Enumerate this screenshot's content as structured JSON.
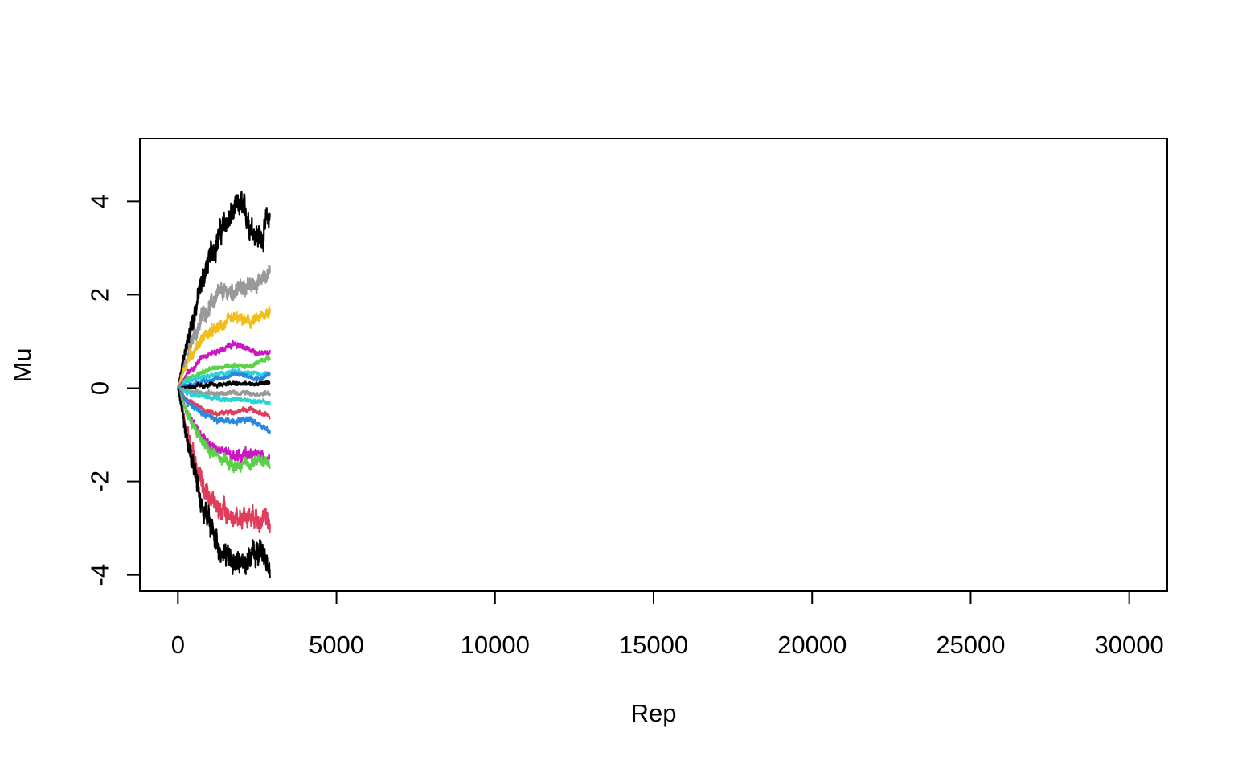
{
  "chart_data": {
    "type": "line",
    "title": "",
    "xlabel": "Rep",
    "ylabel": "Mu",
    "xlim": [
      -1200,
      31200
    ],
    "ylim": [
      -4.35,
      5.35
    ],
    "xticks": [
      0,
      5000,
      10000,
      15000,
      20000,
      25000,
      30000
    ],
    "xtick_labels": [
      "0",
      "5000",
      "10000",
      "15000",
      "20000",
      "25000",
      "30000"
    ],
    "yticks": [
      -4,
      -2,
      0,
      2,
      4
    ],
    "ytick_labels": [
      "-4",
      "-2",
      "0",
      "2",
      "4"
    ],
    "grid": false,
    "legend": "none",
    "x_range_of_series": [
      0,
      2900
    ],
    "series": [
      {
        "color": "#000000",
        "envelope": [
          [
            0,
            0
          ],
          [
            300,
            1.0
          ],
          [
            800,
            2.4
          ],
          [
            1300,
            3.3
          ],
          [
            1800,
            3.8
          ],
          [
            2000,
            3.9
          ],
          [
            2300,
            3.5
          ],
          [
            2600,
            3.2
          ],
          [
            2900,
            3.7
          ]
        ]
      },
      {
        "color": "#999999",
        "envelope": [
          [
            0,
            0
          ],
          [
            300,
            0.7
          ],
          [
            800,
            1.6
          ],
          [
            1300,
            2.0
          ],
          [
            1800,
            2.1
          ],
          [
            2300,
            2.2
          ],
          [
            2600,
            2.3
          ],
          [
            2900,
            2.5
          ]
        ]
      },
      {
        "color": "#F2BE1B",
        "envelope": [
          [
            0,
            0
          ],
          [
            300,
            0.6
          ],
          [
            800,
            1.1
          ],
          [
            1300,
            1.3
          ],
          [
            1800,
            1.5
          ],
          [
            2300,
            1.4
          ],
          [
            2600,
            1.5
          ],
          [
            2900,
            1.7
          ]
        ]
      },
      {
        "color": "#CC16C3",
        "envelope": [
          [
            0,
            0
          ],
          [
            300,
            0.3
          ],
          [
            800,
            0.7
          ],
          [
            1300,
            0.8
          ],
          [
            1800,
            0.95
          ],
          [
            2300,
            0.8
          ],
          [
            2600,
            0.75
          ],
          [
            2900,
            0.8
          ]
        ]
      },
      {
        "color": "#5BD14A",
        "envelope": [
          [
            0,
            0
          ],
          [
            300,
            0.2
          ],
          [
            800,
            0.35
          ],
          [
            1300,
            0.45
          ],
          [
            1800,
            0.5
          ],
          [
            2300,
            0.45
          ],
          [
            2600,
            0.6
          ],
          [
            2900,
            0.65
          ]
        ]
      },
      {
        "color": "#2AD4D4",
        "envelope": [
          [
            0,
            0
          ],
          [
            300,
            0.15
          ],
          [
            800,
            0.25
          ],
          [
            1300,
            0.3
          ],
          [
            1800,
            0.35
          ],
          [
            2300,
            0.35
          ],
          [
            2600,
            0.3
          ],
          [
            2900,
            0.3
          ]
        ]
      },
      {
        "color": "#2B87E0",
        "envelope": [
          [
            0,
            0
          ],
          [
            300,
            0.05
          ],
          [
            800,
            0.15
          ],
          [
            1300,
            0.2
          ],
          [
            1800,
            0.3
          ],
          [
            2300,
            0.25
          ],
          [
            2600,
            0.2
          ],
          [
            2900,
            0.3
          ]
        ]
      },
      {
        "color": "#000000",
        "envelope": [
          [
            0,
            0
          ],
          [
            300,
            0.03
          ],
          [
            800,
            0.05
          ],
          [
            1300,
            0.08
          ],
          [
            1800,
            0.1
          ],
          [
            2300,
            0.08
          ],
          [
            2600,
            0.1
          ],
          [
            2900,
            0.12
          ]
        ]
      },
      {
        "color": "#999999",
        "envelope": [
          [
            0,
            0
          ],
          [
            300,
            -0.05
          ],
          [
            800,
            -0.1
          ],
          [
            1300,
            -0.12
          ],
          [
            1800,
            -0.1
          ],
          [
            2300,
            -0.1
          ],
          [
            2600,
            -0.12
          ],
          [
            2900,
            -0.12
          ]
        ]
      },
      {
        "color": "#2AD4D4",
        "envelope": [
          [
            0,
            0
          ],
          [
            300,
            -0.1
          ],
          [
            800,
            -0.18
          ],
          [
            1300,
            -0.22
          ],
          [
            1800,
            -0.25
          ],
          [
            2300,
            -0.27
          ],
          [
            2600,
            -0.3
          ],
          [
            2900,
            -0.3
          ]
        ]
      },
      {
        "color": "#DF3D5B",
        "envelope": [
          [
            0,
            0
          ],
          [
            300,
            -0.25
          ],
          [
            800,
            -0.45
          ],
          [
            1300,
            -0.55
          ],
          [
            1800,
            -0.5
          ],
          [
            2300,
            -0.45
          ],
          [
            2600,
            -0.55
          ],
          [
            2900,
            -0.6
          ]
        ]
      },
      {
        "color": "#2B87E0",
        "envelope": [
          [
            0,
            0
          ],
          [
            300,
            -0.3
          ],
          [
            800,
            -0.55
          ],
          [
            1300,
            -0.7
          ],
          [
            1800,
            -0.7
          ],
          [
            2300,
            -0.65
          ],
          [
            2600,
            -0.8
          ],
          [
            2900,
            -0.9
          ]
        ]
      },
      {
        "color": "#CC16C3",
        "envelope": [
          [
            0,
            0
          ],
          [
            300,
            -0.55
          ],
          [
            800,
            -1.1
          ],
          [
            1300,
            -1.35
          ],
          [
            1800,
            -1.45
          ],
          [
            2300,
            -1.4
          ],
          [
            2600,
            -1.45
          ],
          [
            2900,
            -1.5
          ]
        ]
      },
      {
        "color": "#5BD14A",
        "envelope": [
          [
            0,
            0
          ],
          [
            300,
            -0.6
          ],
          [
            800,
            -1.2
          ],
          [
            1300,
            -1.5
          ],
          [
            1800,
            -1.7
          ],
          [
            2300,
            -1.6
          ],
          [
            2600,
            -1.55
          ],
          [
            2900,
            -1.6
          ]
        ]
      },
      {
        "color": "#DF3D5B",
        "envelope": [
          [
            0,
            0
          ],
          [
            300,
            -1.0
          ],
          [
            800,
            -2.1
          ],
          [
            1300,
            -2.6
          ],
          [
            1800,
            -2.8
          ],
          [
            2300,
            -2.7
          ],
          [
            2600,
            -2.75
          ],
          [
            2900,
            -2.9
          ]
        ]
      },
      {
        "color": "#000000",
        "envelope": [
          [
            0,
            0
          ],
          [
            300,
            -1.1
          ],
          [
            800,
            -2.6
          ],
          [
            1300,
            -3.4
          ],
          [
            1800,
            -3.8
          ],
          [
            2300,
            -3.6
          ],
          [
            2600,
            -3.5
          ],
          [
            2900,
            -3.75
          ]
        ]
      }
    ]
  }
}
